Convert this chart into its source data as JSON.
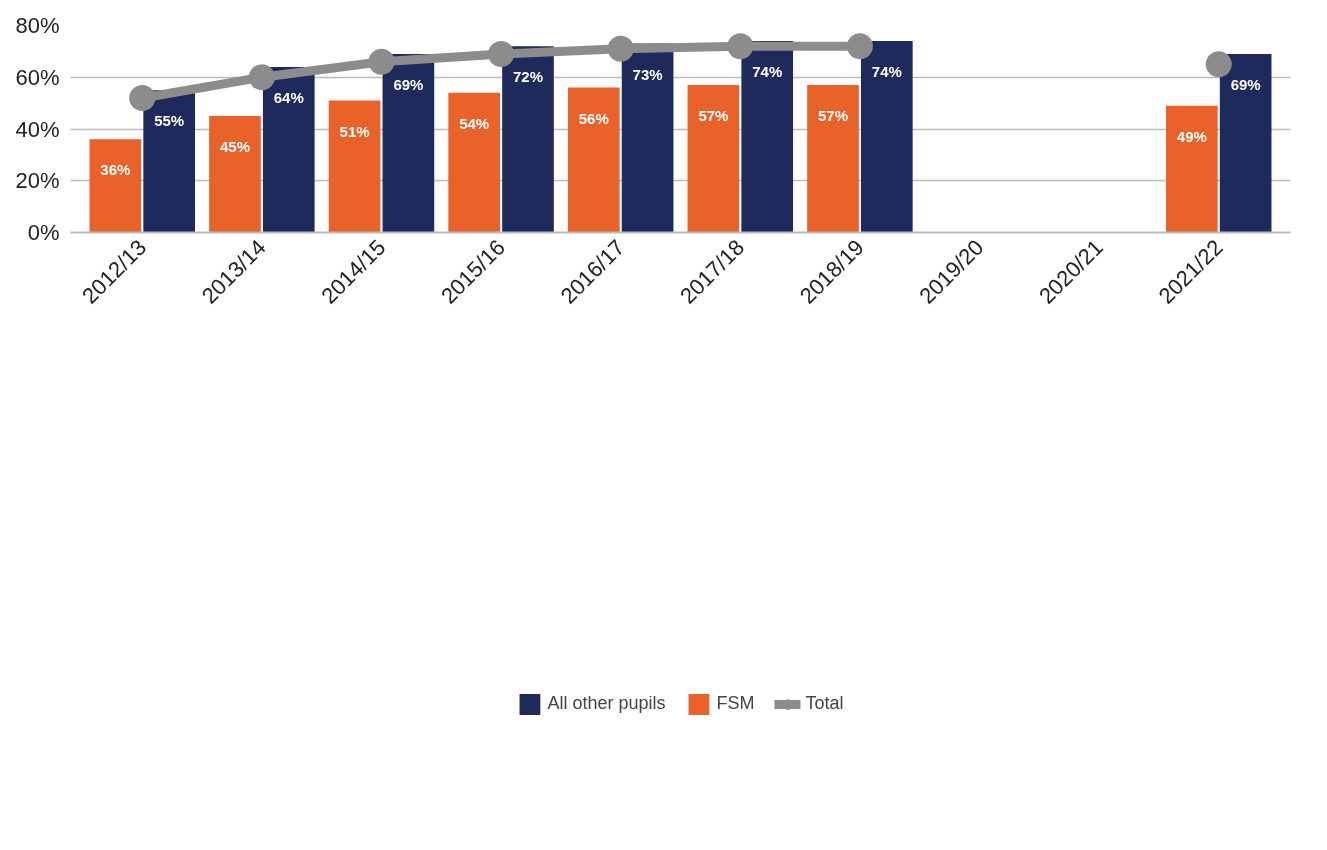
{
  "chart_data": {
    "type": "bar",
    "categories": [
      "2012/13",
      "2013/14",
      "2014/15",
      "2015/16",
      "2016/17",
      "2017/18",
      "2018/19",
      "2019/20",
      "2020/21",
      "2021/22"
    ],
    "series": [
      {
        "name": "FSM",
        "color": "#e8622a",
        "values": [
          36,
          45,
          51,
          54,
          56,
          57,
          57,
          null,
          null,
          49
        ],
        "value_labels": [
          "36%",
          "45%",
          "51%",
          "54%",
          "56%",
          "57%",
          "57%",
          null,
          null,
          "49%"
        ]
      },
      {
        "name": "All other pupils",
        "color": "#1f2a5c",
        "values": [
          55,
          64,
          69,
          72,
          73,
          74,
          74,
          null,
          null,
          69
        ],
        "value_labels": [
          "55%",
          "64%",
          "69%",
          "72%",
          "73%",
          "74%",
          "74%",
          null,
          null,
          "69%"
        ]
      },
      {
        "name": "Total",
        "type": "line",
        "marker": "circle",
        "color": "#8c8c8c",
        "values": [
          52,
          60,
          66,
          69,
          71,
          72,
          72,
          null,
          null,
          65
        ]
      }
    ],
    "ylim": [
      0,
      80
    ],
    "yticks": [
      {
        "value": 0,
        "label": "0%"
      },
      {
        "value": 20,
        "label": "20%"
      },
      {
        "value": 40,
        "label": "40%"
      },
      {
        "value": 60,
        "label": "60%"
      },
      {
        "value": 80,
        "label": "80%"
      }
    ],
    "grid": "y",
    "legend": "bottom"
  }
}
